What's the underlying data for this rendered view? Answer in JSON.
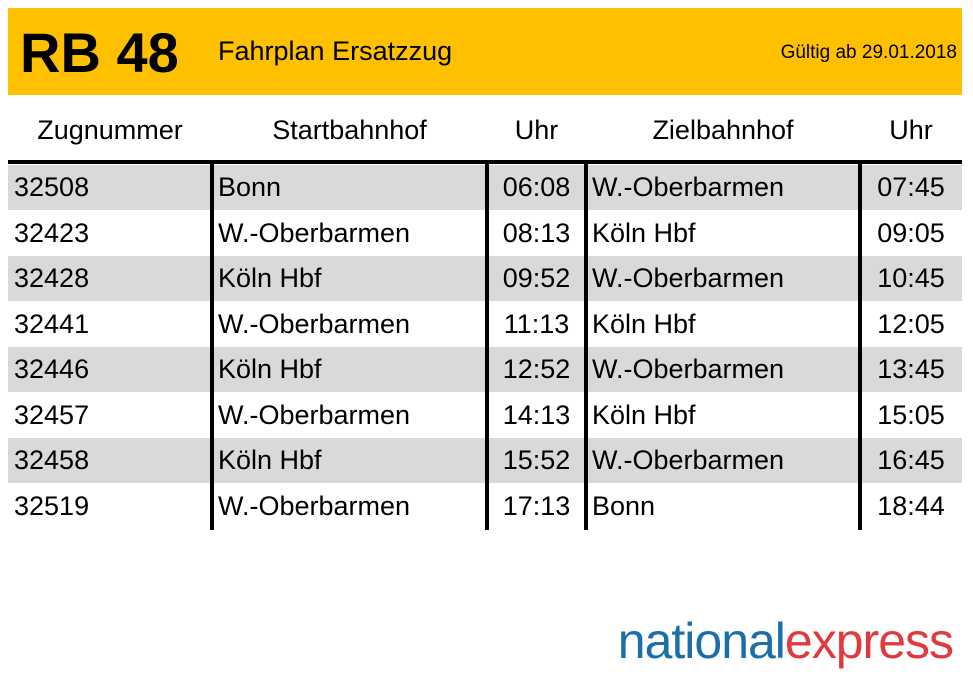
{
  "header": {
    "route": "RB 48",
    "title": "Fahrplan Ersatzzug",
    "valid": "Gültig ab 29.01.2018"
  },
  "table": {
    "columns": [
      "Zugnummer",
      "Startbahnhof",
      "Uhr",
      "Zielbahnhof",
      "Uhr"
    ],
    "rows": [
      [
        "32508",
        "Bonn",
        "06:08",
        "W.-Oberbarmen",
        "07:45"
      ],
      [
        "32423",
        "W.-Oberbarmen",
        "08:13",
        "Köln Hbf",
        "09:05"
      ],
      [
        "32428",
        "Köln Hbf",
        "09:52",
        "W.-Oberbarmen",
        "10:45"
      ],
      [
        "32441",
        "W.-Oberbarmen",
        "11:13",
        "Köln Hbf",
        "12:05"
      ],
      [
        "32446",
        "Köln Hbf",
        "12:52",
        "W.-Oberbarmen",
        "13:45"
      ],
      [
        "32457",
        "W.-Oberbarmen",
        "14:13",
        "Köln Hbf",
        "15:05"
      ],
      [
        "32458",
        "Köln Hbf",
        "15:52",
        "W.-Oberbarmen",
        "16:45"
      ],
      [
        "32519",
        "W.-Oberbarmen",
        "17:13",
        "Bonn",
        "18:44"
      ]
    ]
  },
  "logo": {
    "first": "national",
    "second": "express"
  }
}
